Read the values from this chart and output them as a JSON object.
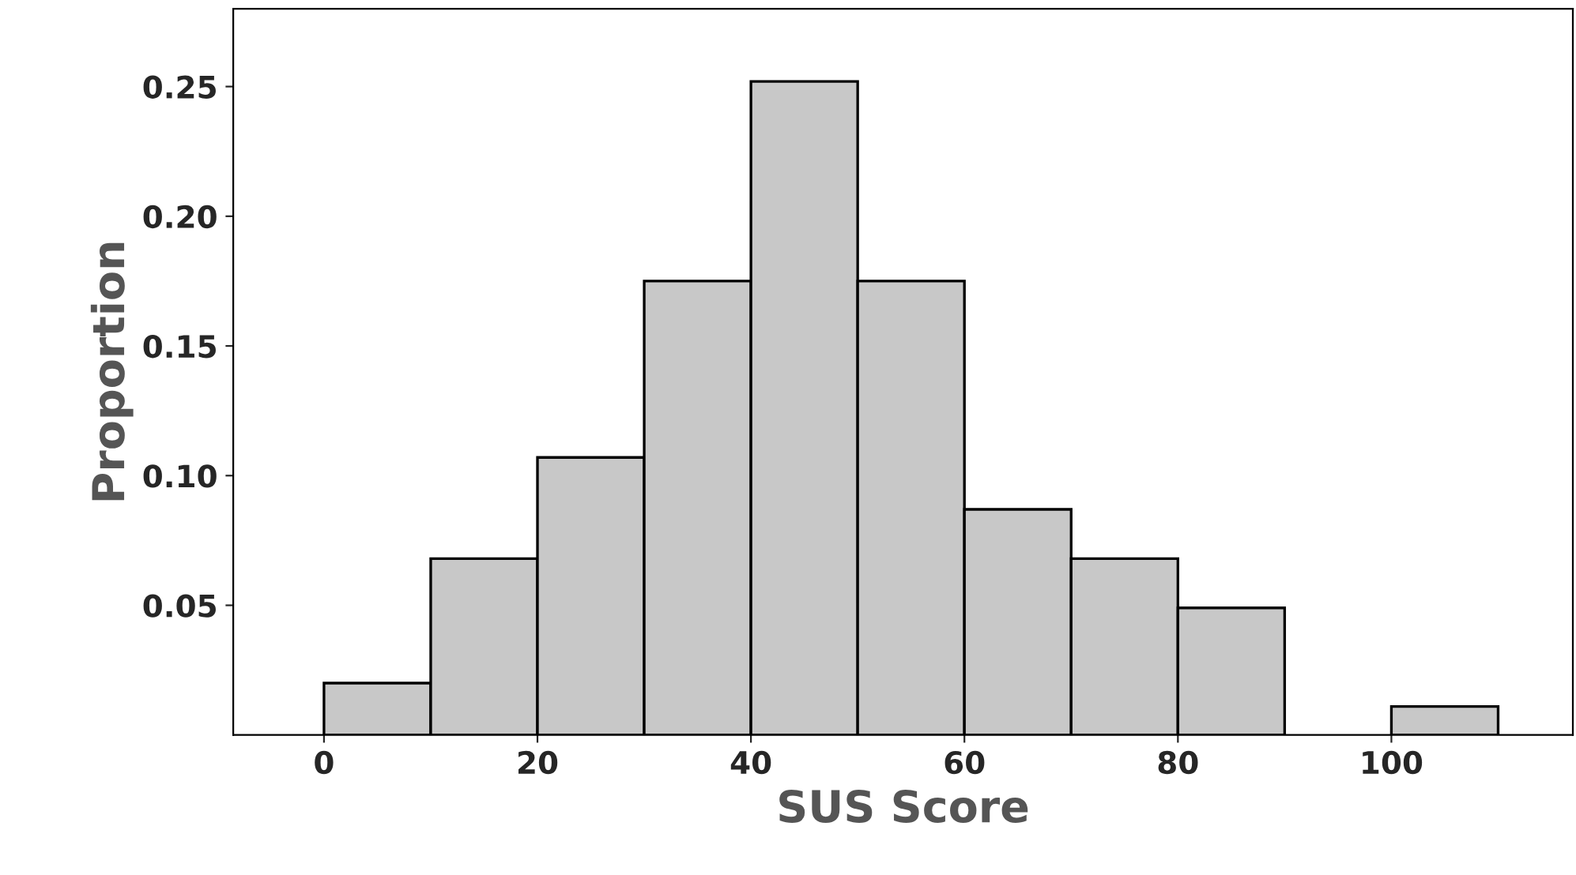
{
  "chart_data": {
    "type": "histogram",
    "xlabel": "SUS Score",
    "ylabel": "Proportion",
    "bins": [
      0,
      10,
      20,
      30,
      40,
      50,
      60,
      70,
      80,
      90,
      100,
      110
    ],
    "values": [
      0.02,
      0.068,
      0.107,
      0.175,
      0.252,
      0.175,
      0.087,
      0.068,
      0.049,
      0,
      0.011
    ],
    "color": "#c8c8c8",
    "xlim": [
      -8.5,
      117
    ],
    "xticks": [
      0,
      20,
      40,
      60,
      80,
      100
    ],
    "ylim": [
      0,
      0.28
    ],
    "yticks": [
      {
        "value": 0.05,
        "label": "0.05"
      },
      {
        "value": 0.1,
        "label": "0.10"
      },
      {
        "value": 0.15,
        "label": "0.15"
      },
      {
        "value": 0.2,
        "label": "0.20"
      },
      {
        "value": 0.25,
        "label": "0.25"
      }
    ],
    "grid": false
  }
}
